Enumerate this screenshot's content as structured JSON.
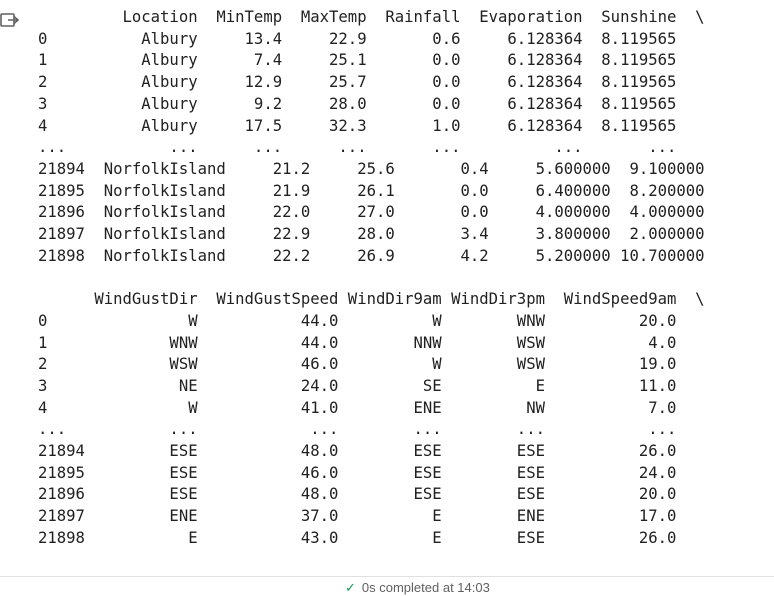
{
  "output_lines": [
    "         Location  MinTemp  MaxTemp  Rainfall  Evaporation  Sunshine  \\",
    "0          Albury     13.4     22.9       0.6     6.128364  8.119565",
    "1          Albury      7.4     25.1       0.0     6.128364  8.119565",
    "2          Albury     12.9     25.7       0.0     6.128364  8.119565",
    "3          Albury      9.2     28.0       0.0     6.128364  8.119565",
    "4          Albury     17.5     32.3       1.0     6.128364  8.119565",
    "...           ...      ...      ...       ...          ...       ...",
    "21894  NorfolkIsland     21.2     25.6       0.4     5.600000  9.100000",
    "21895  NorfolkIsland     21.9     26.1       0.0     6.400000  8.200000",
    "21896  NorfolkIsland     22.0     27.0       0.0     4.000000  4.000000",
    "21897  NorfolkIsland     22.9     28.0       3.4     3.800000  2.000000",
    "21898  NorfolkIsland     22.2     26.9       4.2     5.200000 10.700000",
    "",
    "      WindGustDir  WindGustSpeed WindDir9am WindDir3pm  WindSpeed9am  \\",
    "0               W           44.0          W        WNW          20.0",
    "1             WNW           44.0        NNW        WSW           4.0",
    "2             WSW           46.0          W        WSW          19.0",
    "3              NE           24.0         SE          E          11.0",
    "4               W           41.0        ENE         NW           7.0",
    "...           ...            ...        ...        ...           ...",
    "21894         ESE           48.0        ESE        ESE          26.0",
    "21895         ESE           46.0        ESE        ESE          24.0",
    "21896         ESE           48.0        ESE        ESE          20.0",
    "21897         ENE           37.0          E        ENE          17.0",
    "21898           E           43.0          E        ESE          26.0"
  ],
  "status": {
    "check_icon": "check-icon",
    "text": "0s    completed at 14:03"
  },
  "output_icon": "output-toggle-icon"
}
